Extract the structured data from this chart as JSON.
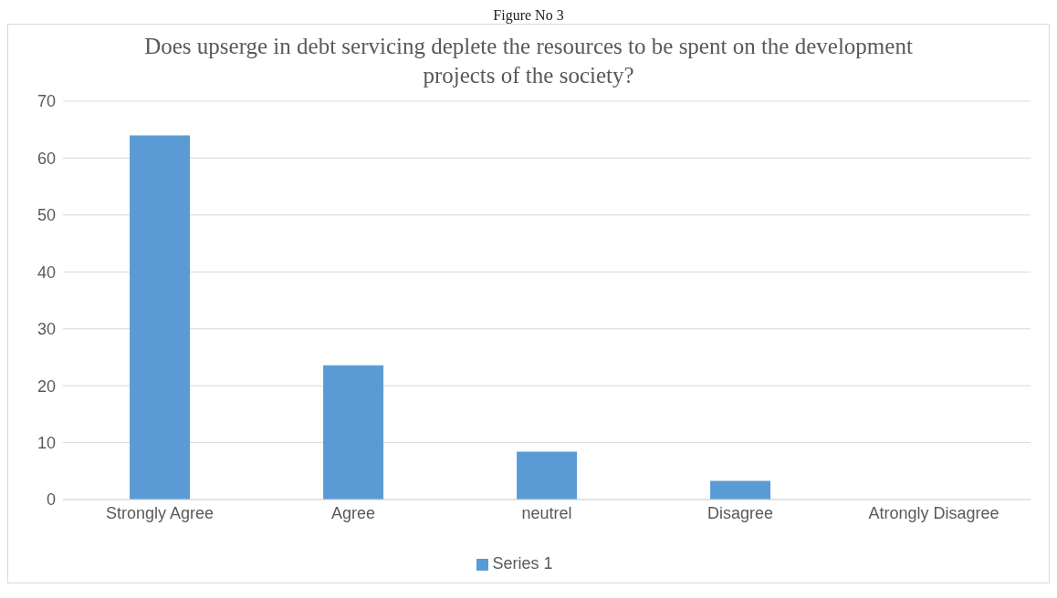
{
  "chart_data": {
    "type": "bar",
    "title": "Does upserge in debt servicing deplete the resources to be spent on the development projects of the society?",
    "annotations": [
      "Figure No 3"
    ],
    "categories": [
      "Strongly Agree",
      "Agree",
      "neutrel",
      "Disagree",
      "Atrongly Disagree"
    ],
    "series": [
      {
        "name": "Series 1",
        "color": "#5b9bd5",
        "values": [
          64,
          23.6,
          8.4,
          3.3,
          0
        ]
      }
    ],
    "ylim": [
      0,
      70
    ],
    "yticks": [
      0,
      10,
      20,
      30,
      40,
      50,
      60,
      70
    ],
    "grid": "y",
    "legend": "bottom"
  }
}
